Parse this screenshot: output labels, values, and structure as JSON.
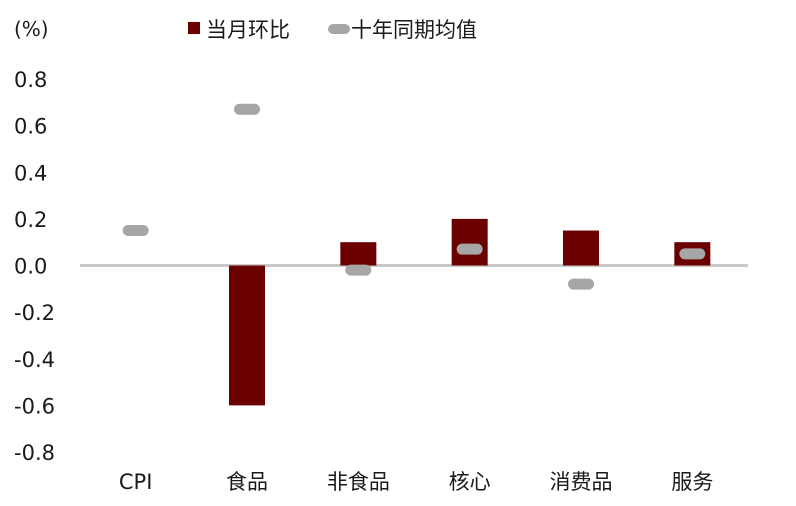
{
  "chart_data": {
    "type": "bar",
    "unit_label": "(%)",
    "categories": [
      "CPI",
      "食品",
      "非食品",
      "核心",
      "消费品",
      "服务"
    ],
    "series": [
      {
        "name": "当月环比",
        "kind": "bar",
        "color": "#6b0000",
        "values": [
          0.0,
          -0.6,
          0.1,
          0.2,
          0.15,
          0.1
        ]
      },
      {
        "name": "十年同期均值",
        "kind": "marker",
        "color": "#a6a6a6",
        "values": [
          0.15,
          0.67,
          -0.02,
          0.07,
          -0.08,
          0.05
        ]
      }
    ],
    "ylim": [
      -0.8,
      0.8
    ],
    "yticks": [
      "0.8",
      "0.6",
      "0.4",
      "0.2",
      "0.0",
      "-0.2",
      "-0.4",
      "-0.6",
      "-0.8"
    ],
    "grid": false,
    "legend_position": "top"
  }
}
